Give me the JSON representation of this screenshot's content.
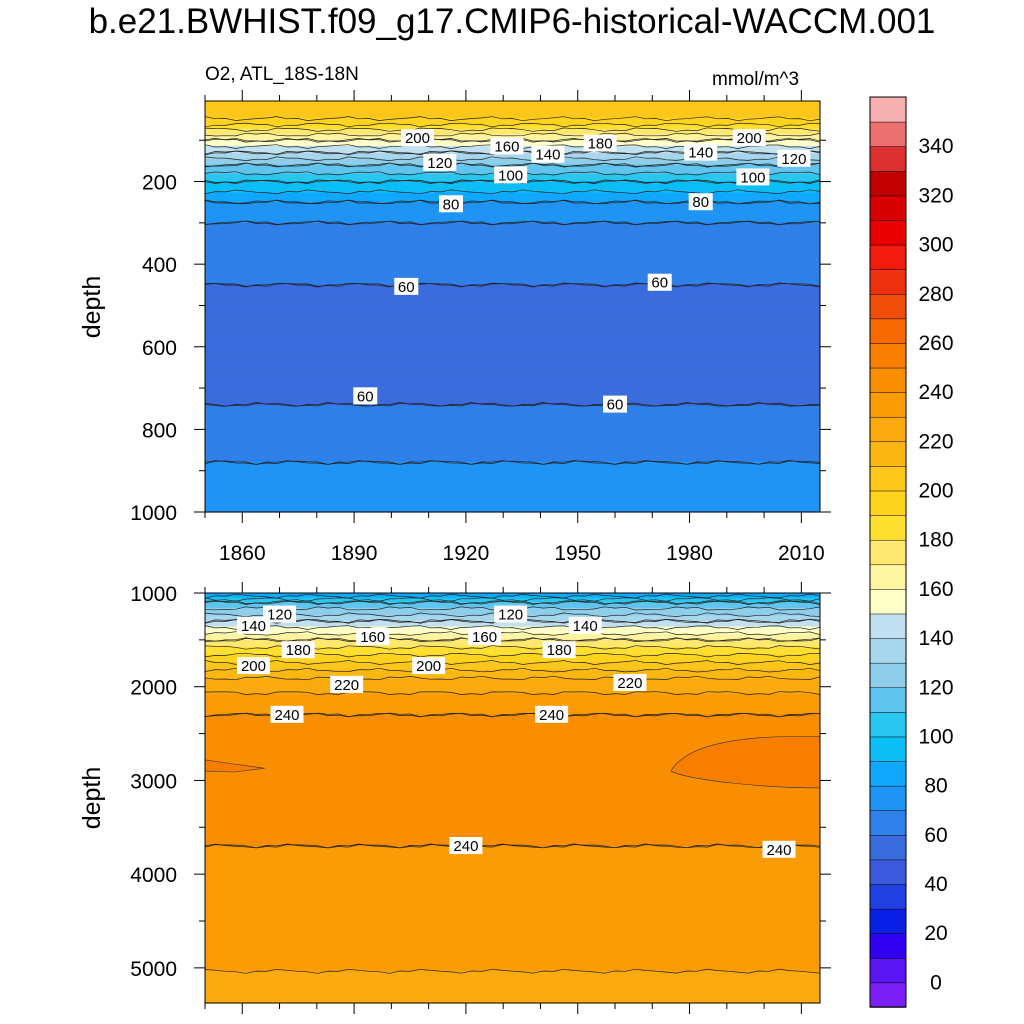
{
  "figure": {
    "title": "b.e21.BWHIST.f09_g17.CMIP6-historical-WACCM.001",
    "variable_label": "O2, ATL_18S-18N",
    "units_label": "mmol/m^3"
  },
  "chart_data": [
    {
      "type": "heatmap",
      "name": "upper-panel",
      "ylabel": "depth",
      "x_ticks": [
        1860,
        1890,
        1920,
        1950,
        1980,
        2010
      ],
      "y_ticks": [
        200,
        400,
        600,
        800,
        1000
      ],
      "xlim": [
        1850,
        2015
      ],
      "ylim": [
        5,
        1000
      ],
      "y_reversed": true,
      "depth_profile": [
        {
          "depth": 5,
          "value": 205
        },
        {
          "depth": 40,
          "value": 205
        },
        {
          "depth": 60,
          "value": 192
        },
        {
          "depth": 80,
          "value": 175
        },
        {
          "depth": 100,
          "value": 160
        },
        {
          "depth": 130,
          "value": 140
        },
        {
          "depth": 160,
          "value": 120
        },
        {
          "depth": 200,
          "value": 100
        },
        {
          "depth": 250,
          "value": 80
        },
        {
          "depth": 300,
          "value": 70
        },
        {
          "depth": 450,
          "value": 60
        },
        {
          "depth": 600,
          "value": 55
        },
        {
          "depth": 740,
          "value": 60
        },
        {
          "depth": 880,
          "value": 70
        },
        {
          "depth": 1000,
          "value": 80
        }
      ],
      "contour_labels": [
        {
          "x": 1907,
          "y": 95,
          "text": "200"
        },
        {
          "x": 1931,
          "y": 115,
          "text": "160"
        },
        {
          "x": 1956,
          "y": 108,
          "text": "180"
        },
        {
          "x": 1996,
          "y": 95,
          "text": "200"
        },
        {
          "x": 1942,
          "y": 135,
          "text": "140"
        },
        {
          "x": 1983,
          "y": 130,
          "text": "140"
        },
        {
          "x": 1913,
          "y": 155,
          "text": "120"
        },
        {
          "x": 2008,
          "y": 145,
          "text": "120"
        },
        {
          "x": 1932,
          "y": 185,
          "text": "100"
        },
        {
          "x": 1997,
          "y": 190,
          "text": "100"
        },
        {
          "x": 1916,
          "y": 255,
          "text": "80"
        },
        {
          "x": 1983,
          "y": 250,
          "text": "80"
        },
        {
          "x": 1904,
          "y": 455,
          "text": "60"
        },
        {
          "x": 1972,
          "y": 445,
          "text": "60"
        },
        {
          "x": 1893,
          "y": 720,
          "text": "60"
        },
        {
          "x": 1960,
          "y": 740,
          "text": "60"
        }
      ]
    },
    {
      "type": "heatmap",
      "name": "lower-panel",
      "ylabel": "depth",
      "y_ticks": [
        1000,
        2000,
        3000,
        4000,
        5000
      ],
      "xlim": [
        1850,
        2015
      ],
      "ylim": [
        1000,
        5375
      ],
      "y_reversed": true,
      "depth_profile": [
        {
          "depth": 1000,
          "value": 80
        },
        {
          "depth": 1100,
          "value": 110
        },
        {
          "depth": 1300,
          "value": 140
        },
        {
          "depth": 1500,
          "value": 170
        },
        {
          "depth": 1700,
          "value": 195
        },
        {
          "depth": 1950,
          "value": 225
        },
        {
          "depth": 2300,
          "value": 240
        },
        {
          "depth": 2800,
          "value": 245
        },
        {
          "depth": 3700,
          "value": 240
        },
        {
          "depth": 4900,
          "value": 232
        },
        {
          "depth": 5375,
          "value": 225
        }
      ],
      "contour_labels": [
        {
          "x": 1870,
          "y": 1230,
          "text": "120"
        },
        {
          "x": 1863,
          "y": 1350,
          "text": "140"
        },
        {
          "x": 1932,
          "y": 1230,
          "text": "120"
        },
        {
          "x": 1952,
          "y": 1350,
          "text": "140"
        },
        {
          "x": 1895,
          "y": 1470,
          "text": "160"
        },
        {
          "x": 1925,
          "y": 1470,
          "text": "160"
        },
        {
          "x": 1875,
          "y": 1610,
          "text": "180"
        },
        {
          "x": 1945,
          "y": 1610,
          "text": "180"
        },
        {
          "x": 1863,
          "y": 1780,
          "text": "200"
        },
        {
          "x": 1910,
          "y": 1780,
          "text": "200"
        },
        {
          "x": 1888,
          "y": 1980,
          "text": "220"
        },
        {
          "x": 1964,
          "y": 1960,
          "text": "220"
        },
        {
          "x": 1872,
          "y": 2300,
          "text": "240"
        },
        {
          "x": 1943,
          "y": 2300,
          "text": "240"
        },
        {
          "x": 1920,
          "y": 3700,
          "text": "240"
        },
        {
          "x": 2004,
          "y": 3740,
          "text": "240"
        }
      ]
    }
  ],
  "colorbar": {
    "tick_labels": [
      "0",
      "20",
      "40",
      "60",
      "80",
      "100",
      "120",
      "140",
      "160",
      "180",
      "200",
      "220",
      "240",
      "260",
      "280",
      "300",
      "320",
      "340"
    ],
    "colors": [
      "#7A1FF5",
      "#5A17F3",
      "#3000F0",
      "#0A1FE6",
      "#2040E2",
      "#3C5ADD",
      "#3A6CDD",
      "#2F80E8",
      "#1F94F5",
      "#10A8FF",
      "#0BBEF5",
      "#29C6F0",
      "#60C5EE",
      "#8ECEEA",
      "#A8D6EC",
      "#C2E1F0",
      "#FFFFC8",
      "#FFF4A0",
      "#FFE870",
      "#FFE030",
      "#FDD31E",
      "#FCC61A",
      "#FBB813",
      "#FAAA0C",
      "#F99C06",
      "#F88E00",
      "#F87E00",
      "#F66A00",
      "#F04E0A",
      "#EE3210",
      "#F31A0E",
      "#EA0000",
      "#D80000",
      "#C30000",
      "#DD3030",
      "#EC7070",
      "#F5B0B0"
    ]
  }
}
